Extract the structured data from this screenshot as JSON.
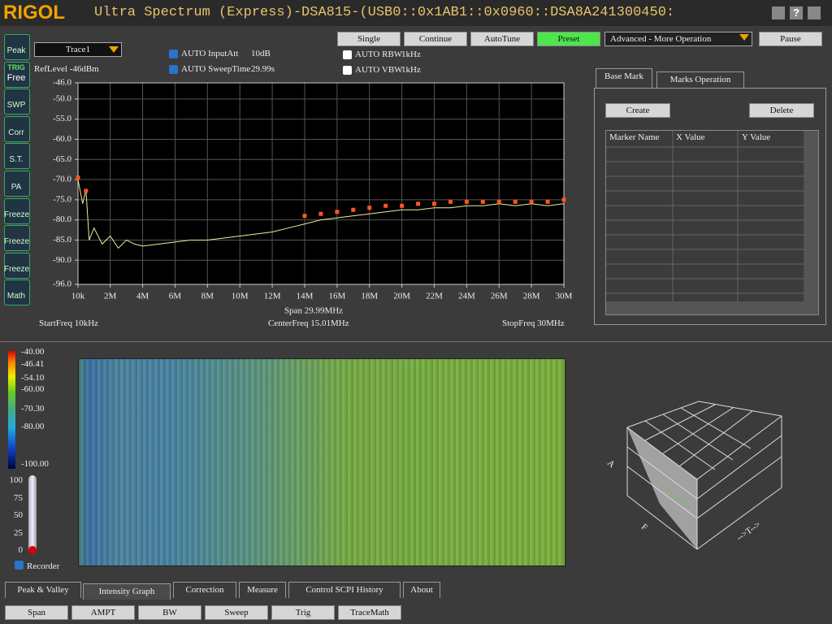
{
  "title_bar": {
    "brand": "RIGOL",
    "title": "Ultra Spectrum (Express)-DSA815-(USB0::0x1AB1::0x0960::DSA8A241300450:",
    "help": "?"
  },
  "toolbar": {
    "buttons": [
      "Single",
      "Continue",
      "AutoTune",
      "Preset"
    ],
    "menu": "Advanced - More Operation",
    "pause": "Pause"
  },
  "side_icons": [
    {
      "label": "Peak"
    },
    {
      "label": "TRIG",
      "state": "Free"
    },
    {
      "label": "SWP"
    },
    {
      "label": "Corr"
    },
    {
      "label": "S.T."
    },
    {
      "label": "PA"
    },
    {
      "label": "Freeze"
    },
    {
      "label": "Freeze"
    },
    {
      "label": "Freeze"
    },
    {
      "label": "Math"
    }
  ],
  "settings": {
    "ref_level": "RefLevel  -46dBm",
    "input_att": {
      "label": "AUTO InputAtt",
      "value": "10dB"
    },
    "sweep_time": {
      "label": "AUTO SweepTime",
      "value": "29.99s"
    },
    "rbw": {
      "label": "AUTO RBW",
      "value": "1kHz"
    },
    "vbw": {
      "label": "AUTO VBW",
      "value": "1kHz"
    }
  },
  "freq_info": {
    "start": "StartFreq  10kHz",
    "center": "CenterFreq  15.01MHz",
    "stop": "StopFreq  30MHz"
  },
  "chart_data": {
    "type": "line",
    "xlabel": "Span  29.99MHz",
    "x": [
      0.01,
      0.3,
      0.5,
      0.7,
      1,
      1.5,
      2,
      2.5,
      3,
      3.5,
      4,
      5,
      6,
      7,
      8,
      9,
      10,
      11,
      12,
      13,
      14,
      15,
      16,
      17,
      18,
      19,
      20,
      21,
      22,
      23,
      24,
      25,
      26,
      27,
      28,
      29,
      30
    ],
    "series": [
      {
        "name": "Trace1",
        "color": "#eeee99",
        "style": "line",
        "values": [
          -70,
          -76,
          -72.5,
          -85,
          -82,
          -86,
          -84,
          -87,
          -85,
          -86,
          -86.5,
          -86,
          -85.5,
          -85,
          -85,
          -84.5,
          -84,
          -83.5,
          -83,
          -82,
          -81,
          -80,
          -79.5,
          -79,
          -78.5,
          -78,
          -77.5,
          -77.5,
          -77,
          -77,
          -76.5,
          -76.5,
          -76,
          -76.5,
          -76,
          -76.5,
          -76
        ]
      },
      {
        "color": "#ff5522",
        "style": "markers",
        "values": [
          -69.5,
          null,
          -72.8,
          null,
          null,
          null,
          null,
          null,
          null,
          null,
          null,
          null,
          null,
          null,
          null,
          null,
          null,
          null,
          null,
          null,
          -79,
          -78.5,
          -78,
          -77.5,
          -77,
          -76.5,
          -76.5,
          -76,
          -76,
          -75.5,
          -75.5,
          -75.5,
          -75.5,
          -75.5,
          -75.5,
          -75.5,
          -75
        ]
      }
    ],
    "xlim": [
      0.01,
      30
    ],
    "xticks": [
      {
        "value": 0.01,
        "label": "10k"
      },
      {
        "value": 2,
        "label": "2M"
      },
      {
        "value": 4,
        "label": "4M"
      },
      {
        "value": 6,
        "label": "6M"
      },
      {
        "value": 8,
        "label": "8M"
      },
      {
        "value": 10,
        "label": "10M"
      },
      {
        "value": 12,
        "label": "12M"
      },
      {
        "value": 14,
        "label": "14M"
      },
      {
        "value": 16,
        "label": "16M"
      },
      {
        "value": 18,
        "label": "18M"
      },
      {
        "value": 20,
        "label": "20M"
      },
      {
        "value": 22,
        "label": "22M"
      },
      {
        "value": 24,
        "label": "24M"
      },
      {
        "value": 26,
        "label": "26M"
      },
      {
        "value": 28,
        "label": "28M"
      },
      {
        "value": 30,
        "label": "30M"
      }
    ],
    "ylim": [
      -96,
      -46
    ],
    "yticks": [
      {
        "value": -46,
        "label": "-46.0"
      },
      {
        "value": -50,
        "label": "-50.0"
      },
      {
        "value": -55,
        "label": "-55.0"
      },
      {
        "value": -60,
        "label": "-60.0"
      },
      {
        "value": -65,
        "label": "-65.0"
      },
      {
        "value": -70,
        "label": "-70.0"
      },
      {
        "value": -75,
        "label": "-75.0"
      },
      {
        "value": -80,
        "label": "-80.0"
      },
      {
        "value": -85,
        "label": "-85.0"
      },
      {
        "value": -90,
        "label": "-90.0"
      },
      {
        "value": -96,
        "label": "-96.0"
      }
    ],
    "grid": true
  },
  "marker_panel": {
    "tabs": [
      "Base Mark",
      "Marks Operation"
    ],
    "buttons": [
      "Create",
      "Delete"
    ],
    "columns": [
      "Marker Name",
      "X Value",
      "Y Value"
    ]
  },
  "intensity": {
    "scale": [
      "-40.00",
      "-46.41",
      "-54.10",
      "-60.00",
      "-70.30",
      "-80.00",
      "-100.00"
    ],
    "slider": [
      "100",
      "75",
      "50",
      "25",
      "0"
    ],
    "recorder": "Recorder",
    "axes_3d": [
      "A",
      "F",
      "-->T-->"
    ]
  },
  "bottom_tabs": [
    "Peak & Valley",
    "Intensity Graph",
    "Correction",
    "Measure",
    "Control SCPI History",
    "About"
  ],
  "bottom_buttons": [
    "Span",
    "AMPT",
    "BW",
    "Sweep",
    "Trig",
    "TraceMath"
  ]
}
